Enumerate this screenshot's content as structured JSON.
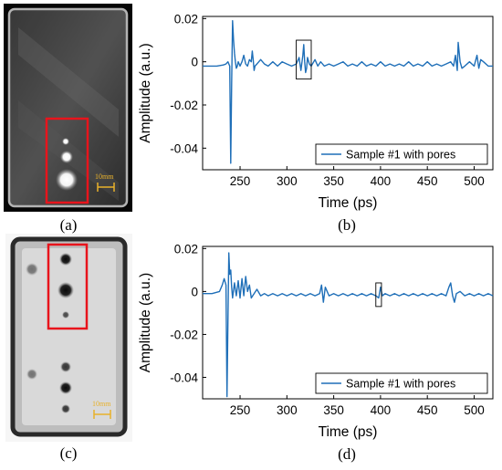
{
  "panels": {
    "a": {
      "caption": "(a)",
      "scale_label": "10mm"
    },
    "b": {
      "caption": "(b)"
    },
    "c": {
      "caption": "(c)",
      "scale_label": "10mm"
    },
    "d": {
      "caption": "(d)"
    }
  },
  "colors": {
    "signal": "#1f6fb8",
    "highlight_box": "#e8141c",
    "scale_bar": "#e8b12a"
  },
  "chart_data": [
    {
      "id": "b",
      "type": "line",
      "xlabel": "Time (ps)",
      "ylabel": "Amplitude (a.u.)",
      "xlim": [
        210,
        520
      ],
      "ylim": [
        -0.05,
        0.021
      ],
      "xticks": [
        250,
        300,
        350,
        400,
        450,
        500
      ],
      "xtick_labels": [
        "250",
        "300",
        "350",
        "400",
        "450",
        "500"
      ],
      "yticks": [
        0.02,
        0,
        -0.02,
        -0.04
      ],
      "ytick_labels": [
        "0.02",
        "0",
        "-0.02",
        "-0.04"
      ],
      "legend_position": "bottom-right",
      "grid": false,
      "annotation_box": {
        "x_range": [
          310,
          326
        ],
        "y_range": [
          -0.008,
          0.01
        ]
      },
      "series": [
        {
          "name": "Sample #1 with pores",
          "x": [
            210,
            225,
            232,
            235,
            237,
            239,
            240,
            241,
            242,
            243,
            244,
            245,
            246,
            247,
            248,
            250,
            252,
            254,
            256,
            258,
            260,
            262,
            263,
            264,
            265,
            266,
            268,
            272,
            276,
            280,
            285,
            290,
            295,
            300,
            305,
            310,
            313,
            315,
            317,
            318,
            319,
            320,
            321,
            322,
            324,
            326,
            330,
            333,
            336,
            340,
            345,
            350,
            355,
            360,
            365,
            370,
            375,
            380,
            385,
            390,
            395,
            400,
            405,
            410,
            415,
            420,
            425,
            430,
            435,
            440,
            445,
            450,
            455,
            460,
            465,
            470,
            475,
            478,
            480,
            482,
            483,
            485,
            487,
            490,
            495,
            500,
            503,
            505,
            507,
            510,
            515,
            520
          ],
          "y": [
            -0.002,
            -0.002,
            -0.0015,
            -0.001,
            0.0,
            -0.002,
            -0.047,
            -0.01,
            0.019,
            0.01,
            0.004,
            0.0,
            -0.003,
            -0.002,
            0.0,
            -0.002,
            0.0,
            0.003,
            -0.001,
            -0.002,
            0.001,
            0.0,
            0.005,
            0.001,
            -0.004,
            -0.002,
            -0.001,
            0.001,
            -0.001,
            -0.002,
            0.0,
            -0.002,
            0.0,
            -0.001,
            -0.002,
            -0.001,
            0.002,
            -0.004,
            0.003,
            0.008,
            0.0,
            -0.005,
            -0.003,
            0.002,
            -0.001,
            -0.002,
            0.001,
            -0.002,
            0.0,
            -0.002,
            -0.001,
            -0.002,
            -0.001,
            0.0,
            -0.002,
            -0.001,
            -0.002,
            0.0,
            -0.002,
            -0.001,
            -0.002,
            0.0,
            -0.002,
            -0.001,
            -0.002,
            -0.001,
            -0.002,
            0.0,
            -0.002,
            -0.001,
            -0.002,
            0.0,
            -0.002,
            -0.001,
            -0.002,
            -0.001,
            0.0,
            -0.002,
            0.003,
            -0.004,
            0.009,
            0.0,
            -0.003,
            -0.002,
            0.0,
            -0.002,
            0.003,
            -0.003,
            0.001,
            0.0,
            -0.002,
            -0.002
          ]
        }
      ]
    },
    {
      "id": "d",
      "type": "line",
      "xlabel": "Time (ps)",
      "ylabel": "Amplitude (a.u.)",
      "xlim": [
        210,
        520
      ],
      "ylim": [
        -0.05,
        0.021
      ],
      "xticks": [
        250,
        300,
        350,
        400,
        450,
        500
      ],
      "xtick_labels": [
        "250",
        "300",
        "350",
        "400",
        "450",
        "500"
      ],
      "yticks": [
        0.02,
        0,
        -0.02,
        -0.04
      ],
      "ytick_labels": [
        "0.02",
        "0",
        "-0.02",
        "-0.04"
      ],
      "legend_position": "bottom-right",
      "grid": false,
      "annotation_box": {
        "x_range": [
          395,
          401
        ],
        "y_range": [
          -0.007,
          0.004
        ]
      },
      "series": [
        {
          "name": "Sample #1 with pores",
          "x": [
            210,
            220,
            228,
            231,
            233,
            235,
            236,
            237,
            238,
            239,
            240,
            241,
            242,
            244,
            246,
            248,
            250,
            252,
            254,
            256,
            258,
            260,
            262,
            265,
            268,
            272,
            276,
            280,
            285,
            290,
            295,
            300,
            305,
            310,
            315,
            320,
            325,
            330,
            335,
            337,
            339,
            341,
            345,
            350,
            355,
            360,
            365,
            370,
            375,
            380,
            385,
            390,
            395,
            398,
            400,
            402,
            405,
            410,
            415,
            420,
            425,
            430,
            435,
            440,
            445,
            450,
            455,
            460,
            465,
            470,
            473,
            475,
            477,
            479,
            481,
            485,
            490,
            495,
            500,
            505,
            510,
            515,
            520
          ],
          "y": [
            -0.001,
            -0.001,
            0.0,
            0.003,
            0.006,
            0.003,
            -0.049,
            -0.015,
            0.018,
            0.008,
            0.01,
            0.002,
            -0.003,
            0.004,
            -0.002,
            0.005,
            -0.003,
            0.006,
            -0.002,
            0.007,
            0.0,
            0.003,
            -0.003,
            -0.001,
            0.001,
            -0.002,
            -0.001,
            -0.002,
            -0.001,
            -0.002,
            -0.001,
            -0.002,
            -0.001,
            -0.002,
            -0.001,
            -0.002,
            -0.001,
            -0.002,
            -0.001,
            0.003,
            -0.005,
            0.002,
            -0.002,
            -0.001,
            -0.002,
            -0.001,
            -0.002,
            -0.001,
            -0.002,
            -0.001,
            -0.002,
            -0.001,
            -0.002,
            -0.003,
            0.002,
            -0.002,
            -0.001,
            -0.002,
            -0.001,
            -0.002,
            -0.001,
            -0.002,
            -0.001,
            -0.002,
            -0.001,
            -0.002,
            -0.001,
            -0.002,
            -0.001,
            -0.002,
            0.002,
            0.004,
            -0.002,
            -0.005,
            -0.001,
            0.0,
            -0.002,
            -0.001,
            -0.002,
            -0.001,
            -0.002,
            -0.001,
            -0.002
          ]
        }
      ]
    }
  ]
}
